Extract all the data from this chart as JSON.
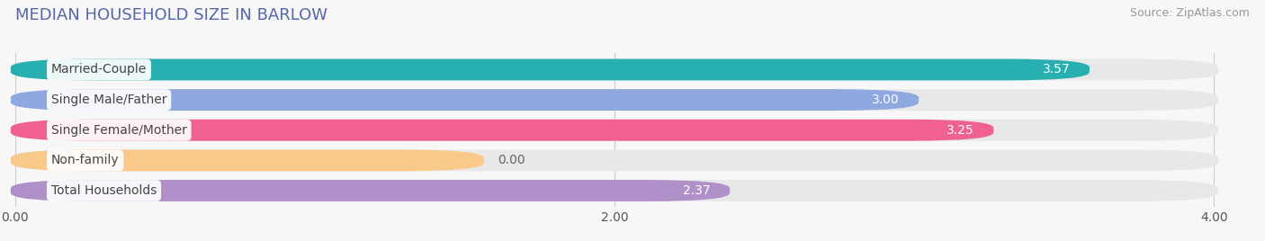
{
  "title": "MEDIAN HOUSEHOLD SIZE IN BARLOW",
  "source": "Source: ZipAtlas.com",
  "categories": [
    "Married-Couple",
    "Single Male/Father",
    "Single Female/Mother",
    "Non-family",
    "Total Households"
  ],
  "values": [
    3.57,
    3.0,
    3.25,
    0.0,
    2.37
  ],
  "bar_colors": [
    "#28b0b0",
    "#8fa8e0",
    "#f06090",
    "#f9c98a",
    "#b090c8"
  ],
  "xlim": [
    0,
    4.0
  ],
  "xticks": [
    0.0,
    2.0,
    4.0
  ],
  "background_color": "#f7f7f7",
  "bar_bg_color": "#e8e8e8",
  "title_fontsize": 13,
  "source_fontsize": 9,
  "tick_fontsize": 10,
  "label_fontsize": 10,
  "value_fontsize": 10
}
